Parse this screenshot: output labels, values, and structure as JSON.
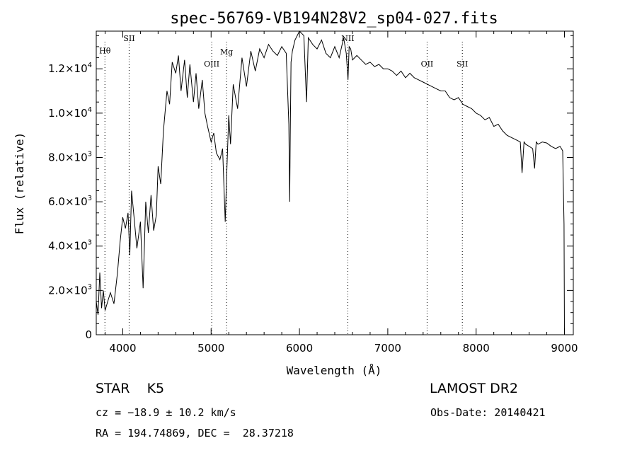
{
  "chart_data": {
    "type": "line",
    "title": "spec-56769-VB194N28V2_sp04-027.fits",
    "xlabel": "Wavelength (Å)",
    "ylabel": "Flux (relative)",
    "xlim": [
      3700,
      9100
    ],
    "ylim": [
      0,
      13700
    ],
    "x_ticks": [
      {
        "value": 4000,
        "label": "4000"
      },
      {
        "value": 5000,
        "label": "5000"
      },
      {
        "value": 6000,
        "label": "6000"
      },
      {
        "value": 7000,
        "label": "7000"
      },
      {
        "value": 8000,
        "label": "8000"
      },
      {
        "value": 9000,
        "label": "9000"
      }
    ],
    "y_ticks": [
      {
        "value": 0,
        "mant": "0",
        "exp": ""
      },
      {
        "value": 2000,
        "mant": "2.0×10",
        "exp": "3"
      },
      {
        "value": 4000,
        "mant": "4.0×10",
        "exp": "3"
      },
      {
        "value": 6000,
        "mant": "6.0×10",
        "exp": "3"
      },
      {
        "value": 8000,
        "mant": "8.0×10",
        "exp": "3"
      },
      {
        "value": 10000,
        "mant": "1.0×10",
        "exp": "4"
      },
      {
        "value": 12000,
        "mant": "1.2×10",
        "exp": "4"
      }
    ],
    "grid": false,
    "line_color": "#000000",
    "spectral_lines": [
      {
        "label": "Hθ",
        "wavelength": 3798,
        "label_flux": 12700
      },
      {
        "label": "SII",
        "wavelength": 4072,
        "label_flux": 13250
      },
      {
        "label": "OIII",
        "wavelength": 5007,
        "label_flux": 12100
      },
      {
        "label": "Mg",
        "wavelength": 5175,
        "label_flux": 12650
      },
      {
        "label": "NII",
        "wavelength": 6548,
        "label_flux": 13250
      },
      {
        "label": "OII",
        "wavelength": 7445,
        "label_flux": 12100
      },
      {
        "label": "SII",
        "wavelength": 7844,
        "label_flux": 12100
      }
    ],
    "series": [
      {
        "x": [
          3700,
          3720,
          3740,
          3760,
          3780,
          3800,
          3830,
          3860,
          3900,
          3940,
          3970,
          4000,
          4030,
          4060,
          4080,
          4100,
          4130,
          4160,
          4200,
          4230,
          4260,
          4290,
          4320,
          4350,
          4380,
          4400,
          4430,
          4460,
          4500,
          4530,
          4560,
          4600,
          4630,
          4660,
          4700,
          4730,
          4760,
          4800,
          4830,
          4860,
          4900,
          4930,
          4960,
          5000,
          5030,
          5060,
          5100,
          5130,
          5160,
          5180,
          5200,
          5220,
          5250,
          5300,
          5350,
          5400,
          5450,
          5500,
          5550,
          5600,
          5650,
          5700,
          5750,
          5800,
          5850,
          5880,
          5890,
          5896,
          5905,
          5920,
          5950,
          6000,
          6050,
          6080,
          6100,
          6150,
          6200,
          6250,
          6300,
          6350,
          6400,
          6450,
          6500,
          6530,
          6550,
          6563,
          6580,
          6600,
          6650,
          6700,
          6750,
          6800,
          6850,
          6900,
          6950,
          7000,
          7050,
          7100,
          7150,
          7200,
          7250,
          7300,
          7350,
          7400,
          7450,
          7500,
          7550,
          7600,
          7650,
          7700,
          7750,
          7800,
          7850,
          7900,
          7950,
          8000,
          8050,
          8100,
          8150,
          8200,
          8250,
          8300,
          8350,
          8400,
          8450,
          8500,
          8520,
          8542,
          8560,
          8600,
          8640,
          8662,
          8680,
          8700,
          8750,
          8800,
          8850,
          8900,
          8950,
          8980,
          8995,
          9000
        ],
        "y": [
          1500,
          900,
          2800,
          1200,
          2000,
          1100,
          1500,
          1900,
          1400,
          2800,
          4200,
          5300,
          4800,
          5500,
          3600,
          6500,
          5200,
          3900,
          5100,
          2100,
          6000,
          4600,
          6300,
          4700,
          5400,
          7600,
          6800,
          9200,
          11000,
          10400,
          12300,
          11800,
          12600,
          11000,
          12400,
          10700,
          12200,
          10500,
          11800,
          10200,
          11500,
          10000,
          9400,
          8700,
          9100,
          8200,
          7900,
          8400,
          5100,
          7600,
          9900,
          8600,
          11300,
          10200,
          12500,
          11200,
          12800,
          11900,
          12900,
          12500,
          13100,
          12800,
          12600,
          13000,
          12700,
          9500,
          6000,
          9000,
          12300,
          12800,
          13300,
          13700,
          13500,
          10500,
          13400,
          13100,
          12900,
          13300,
          12700,
          12500,
          13000,
          12500,
          13400,
          12700,
          11500,
          13000,
          12900,
          12400,
          12600,
          12400,
          12200,
          12300,
          12100,
          12200,
          12000,
          12000,
          11900,
          11700,
          11900,
          11600,
          11800,
          11600,
          11500,
          11400,
          11300,
          11200,
          11100,
          11000,
          11000,
          10700,
          10600,
          10700,
          10400,
          10300,
          10200,
          10000,
          9900,
          9700,
          9800,
          9400,
          9500,
          9200,
          9000,
          8900,
          8800,
          8700,
          7300,
          8700,
          8600,
          8500,
          8400,
          7500,
          8700,
          8600,
          8700,
          8650,
          8500,
          8400,
          8500,
          8300,
          5000,
          0
        ]
      }
    ],
    "info": {
      "object_type": "STAR",
      "subclass": "K5",
      "survey": "LAMOST DR2",
      "cz_line": "cz = −18.9 ± 10.2 km/s",
      "obs_date": "Obs-Date: 20140421",
      "radec_line": "RA = 194.74869, DEC =  28.37218"
    }
  }
}
